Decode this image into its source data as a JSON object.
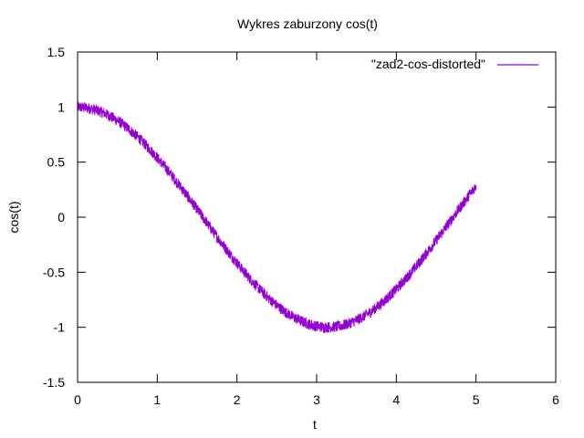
{
  "chart_data": {
    "type": "line",
    "title": "Wykres zaburzony cos(t)",
    "xlabel": "t",
    "ylabel": "cos(t)",
    "xlim": [
      0,
      6
    ],
    "ylim": [
      -1.5,
      1.5
    ],
    "xticks": [
      0,
      1,
      2,
      3,
      4,
      5,
      6
    ],
    "xtick_labels": [
      "0",
      "1",
      "2",
      "3",
      "4",
      "5",
      "6"
    ],
    "yticks": [
      -1.5,
      -1,
      -0.5,
      0,
      0.5,
      1,
      1.5
    ],
    "ytick_labels": [
      "-1.5",
      "-1",
      "-0.5",
      "0",
      "0.5",
      "1",
      "1.5"
    ],
    "grid": false,
    "legend": {
      "position": "top-right"
    },
    "series": [
      {
        "name": "\"zad2-cos-distorted\"",
        "color": "#9400d3",
        "x": [
          0.0,
          0.1,
          0.2,
          0.3,
          0.4,
          0.5,
          0.6,
          0.7,
          0.8,
          0.9,
          1.0,
          1.1,
          1.2,
          1.3,
          1.4,
          1.5,
          1.6,
          1.7,
          1.8,
          1.9,
          2.0,
          2.1,
          2.2,
          2.3,
          2.4,
          2.5,
          2.6,
          2.7,
          2.8,
          2.9,
          3.0,
          3.1,
          3.2,
          3.3,
          3.4,
          3.5,
          3.6,
          3.7,
          3.8,
          3.9,
          4.0,
          4.1,
          4.2,
          4.3,
          4.4,
          4.5,
          4.6,
          4.7,
          4.8,
          4.9,
          5.0
        ],
        "y": [
          1.0,
          0.995,
          0.98,
          0.955,
          0.921,
          0.878,
          0.825,
          0.765,
          0.697,
          0.622,
          0.54,
          0.454,
          0.362,
          0.268,
          0.17,
          0.071,
          -0.029,
          -0.129,
          -0.227,
          -0.323,
          -0.416,
          -0.505,
          -0.589,
          -0.666,
          -0.737,
          -0.801,
          -0.857,
          -0.904,
          -0.942,
          -0.971,
          -0.99,
          -0.999,
          -0.998,
          -0.988,
          -0.967,
          -0.936,
          -0.897,
          -0.848,
          -0.791,
          -0.726,
          -0.654,
          -0.575,
          -0.49,
          -0.401,
          -0.307,
          -0.211,
          -0.112,
          -0.012,
          0.087,
          0.187,
          0.284
        ],
        "noise_amplitude": 0.05
      }
    ]
  }
}
